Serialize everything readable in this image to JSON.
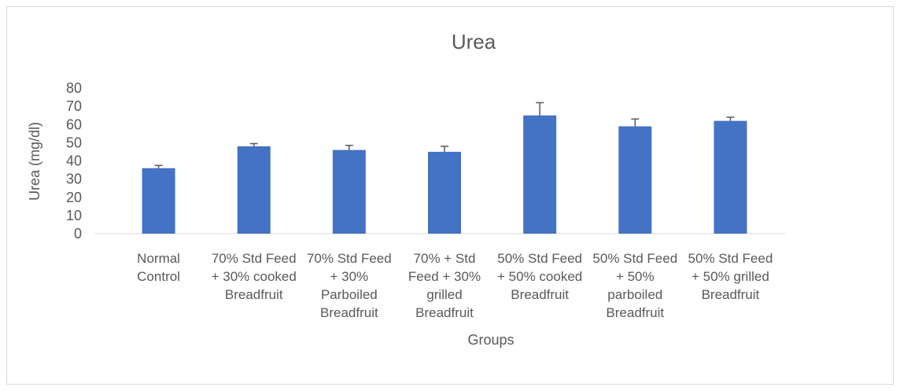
{
  "chart_data": {
    "type": "bar",
    "title": "Urea",
    "x_label": "Groups",
    "y_label": "Urea (mg/dl)",
    "categories": [
      "Normal Control",
      "70% Std Feed + 30% cooked Breadfruit",
      "70% Std Feed + 30% Parboiled Breadfruit",
      "70% + Std Feed + 30% grilled Breadfruit",
      "50% Std Feed + 50% cooked Breadfruit",
      "50% Std Feed + 50% parboiled Breadfruit",
      "50% Std Feed + 50% grilled Breadfruit"
    ],
    "values": [
      36,
      48,
      46,
      45,
      65,
      59,
      62
    ],
    "errors": [
      1.5,
      1.5,
      2.5,
      3,
      7,
      4,
      2
    ],
    "color": "#4472c4",
    "ylim": [
      0,
      80
    ],
    "yticks": [
      0,
      10,
      20,
      30,
      40,
      50,
      60,
      70,
      80
    ],
    "grid": false
  }
}
